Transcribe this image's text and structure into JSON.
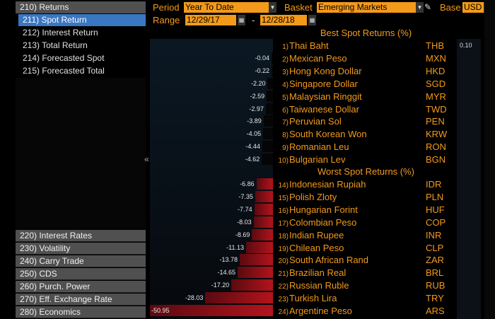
{
  "left_panel": {
    "parent": "210) Returns",
    "children": [
      "211) Spot Return",
      "212) Interest Return",
      "213) Total Return",
      "214) Forecasted Spot",
      "215) Forecasted Total"
    ],
    "bottom": [
      "220) Interest Rates",
      "230) Volatility",
      "240) Carry Trade",
      "250) CDS",
      "260) Purch. Power",
      "270) Eff. Exchange Rate",
      "280) Economics"
    ],
    "collapse_glyph": "«"
  },
  "header": {
    "period_label": "Period",
    "period_value": "Year To Date",
    "basket_label": "Basket",
    "basket_value": "Emerging Markets",
    "base_label": "Base",
    "base_value": "USD",
    "range_label": "Range",
    "range_start": "12/29/17",
    "range_sep": "-",
    "range_end": "12/28/18"
  },
  "sections": {
    "best_title": "Best Spot Returns (%)",
    "worst_title": "Worst Spot Returns (%)"
  },
  "best": [
    {
      "rank": "1)",
      "name": "Thai Baht",
      "code": "THB",
      "value": "0.10"
    },
    {
      "rank": "2)",
      "name": "Mexican Peso",
      "code": "MXN",
      "value": "-0.04"
    },
    {
      "rank": "3)",
      "name": "Hong Kong Dollar",
      "code": "HKD",
      "value": "-0.22"
    },
    {
      "rank": "4)",
      "name": "Singapore Dollar",
      "code": "SGD",
      "value": "-2.20"
    },
    {
      "rank": "5)",
      "name": "Malaysian Ringgit",
      "code": "MYR",
      "value": "-2.59"
    },
    {
      "rank": "6)",
      "name": "Taiwanese Dollar",
      "code": "TWD",
      "value": "-2.97"
    },
    {
      "rank": "7)",
      "name": "Peruvian Sol",
      "code": "PEN",
      "value": "-3.89"
    },
    {
      "rank": "8)",
      "name": "South Korean Won",
      "code": "KRW",
      "value": "-4.05"
    },
    {
      "rank": "9)",
      "name": "Romanian Leu",
      "code": "RON",
      "value": "-4.44"
    },
    {
      "rank": "10)",
      "name": "Bulgarian Lev",
      "code": "BGN",
      "value": "-4.62"
    }
  ],
  "worst": [
    {
      "rank": "14)",
      "name": "Indonesian Rupiah",
      "code": "IDR",
      "value": "-6.86"
    },
    {
      "rank": "15)",
      "name": "Polish Zloty",
      "code": "PLN",
      "value": "-7.35"
    },
    {
      "rank": "16)",
      "name": "Hungarian Forint",
      "code": "HUF",
      "value": "-7.74"
    },
    {
      "rank": "17)",
      "name": "Colombian Peso",
      "code": "COP",
      "value": "-8.03"
    },
    {
      "rank": "18)",
      "name": "Indian Rupee",
      "code": "INR",
      "value": "-8.69"
    },
    {
      "rank": "19)",
      "name": "Chilean Peso",
      "code": "CLP",
      "value": "-11.13"
    },
    {
      "rank": "20)",
      "name": "South African Rand",
      "code": "ZAR",
      "value": "-13.78"
    },
    {
      "rank": "21)",
      "name": "Brazilian Real",
      "code": "BRL",
      "value": "-14.65"
    },
    {
      "rank": "22)",
      "name": "Russian Ruble",
      "code": "RUB",
      "value": "-17.20"
    },
    {
      "rank": "23)",
      "name": "Turkish Lira",
      "code": "TRY",
      "value": "-28.03"
    },
    {
      "rank": "24)",
      "name": "Argentine Peso",
      "code": "ARS",
      "value": "-50.95"
    }
  ],
  "colors": {
    "accent": "#f39a1a",
    "selected": "#3a77c2",
    "bar_negative": "#b3141c"
  }
}
